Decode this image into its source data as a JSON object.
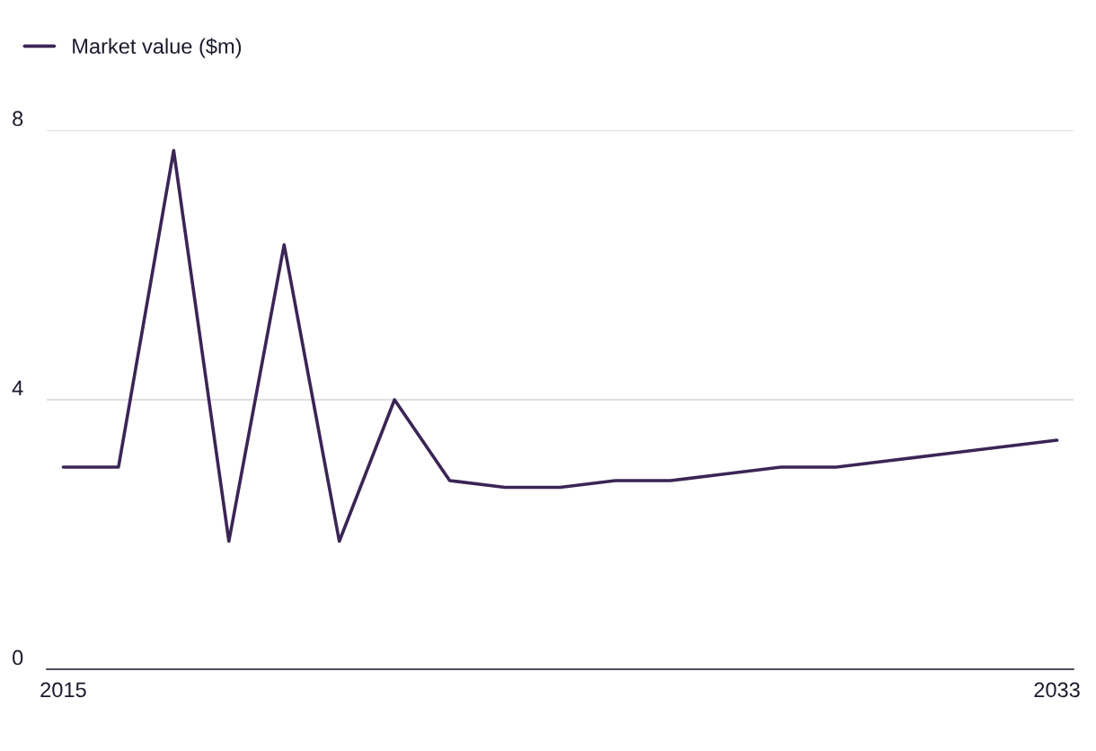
{
  "chart_data": {
    "type": "line",
    "x": [
      2015,
      2016,
      2017,
      2018,
      2019,
      2020,
      2021,
      2022,
      2023,
      2024,
      2025,
      2026,
      2027,
      2028,
      2029,
      2030,
      2031,
      2032,
      2033
    ],
    "series": [
      {
        "name": "Market value ($m)",
        "color": "#3b2555",
        "values": [
          3.0,
          3.0,
          7.7,
          1.9,
          6.3,
          1.9,
          4.0,
          2.8,
          2.7,
          2.7,
          2.8,
          2.8,
          2.9,
          3.0,
          3.0,
          3.1,
          3.2,
          3.3,
          3.4
        ]
      }
    ],
    "xlim": [
      2014.7,
      2033.3
    ],
    "xticks": [
      2015,
      2033
    ],
    "ylim": [
      0,
      8
    ],
    "yticks": [
      0,
      4,
      8
    ],
    "grid": "y",
    "legend": "top left",
    "marker": "none",
    "line_style": "solid"
  }
}
